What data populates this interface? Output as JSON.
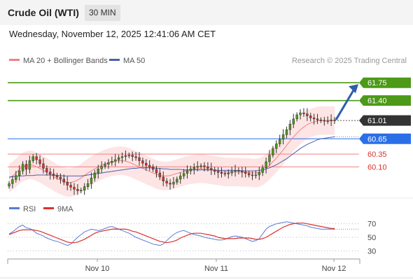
{
  "header": {
    "title": "Crude Oil (WTI)",
    "interval": "30 MIN",
    "datetime": "Wednesday, November 12, 2025 12:41:06 AM CET"
  },
  "legend": {
    "ma20_label": "MA 20 + Bollinger Bands",
    "ma50_label": "MA 50",
    "credit": "Research © 2025 Trading Central"
  },
  "colors": {
    "resistance": "#4c9a17",
    "support": "#f08080",
    "pivot": "#2a6fe8",
    "last": "#333333",
    "ma20": "#f08080",
    "ma50": "#4b5fae",
    "band": "#fde1e1",
    "candle_up": "#4c9a17",
    "candle_down": "#d9322a",
    "rsi": "#5b7bd5",
    "rsi_ma": "#d9322a",
    "arrow": "#2e5faa"
  },
  "chart_data": [
    {
      "type": "candlestick",
      "ylim": [
        59.5,
        62.0
      ],
      "x_ticks": [
        "Nov 10",
        "Nov 11",
        "Nov 12"
      ],
      "levels": [
        {
          "value": 61.75,
          "label": "61.75",
          "kind": "resistance"
        },
        {
          "value": 61.4,
          "label": "61.40",
          "kind": "resistance"
        },
        {
          "value": 61.01,
          "label": "61.01",
          "kind": "last"
        },
        {
          "value": 60.65,
          "label": "60.65",
          "kind": "pivot"
        },
        {
          "value": 60.35,
          "label": "60.35",
          "kind": "support"
        },
        {
          "value": 60.1,
          "label": "60.10",
          "kind": "support"
        }
      ],
      "close": [
        59.77,
        59.85,
        59.93,
        60.02,
        60.15,
        60.05,
        60.22,
        60.3,
        60.24,
        60.16,
        60.07,
        60.0,
        59.96,
        59.93,
        59.9,
        59.86,
        59.8,
        59.74,
        59.7,
        59.66,
        59.63,
        59.64,
        59.71,
        59.77,
        59.88,
        59.98,
        60.06,
        60.11,
        60.15,
        60.18,
        60.21,
        60.24,
        60.28,
        60.3,
        60.32,
        60.33,
        60.3,
        60.28,
        60.22,
        60.17,
        60.13,
        60.1,
        60.05,
        59.98,
        59.9,
        59.82,
        59.78,
        59.76,
        59.8,
        59.86,
        59.92,
        59.97,
        60.02,
        60.06,
        60.09,
        60.11,
        60.12,
        60.1,
        60.07,
        60.04,
        60.01,
        59.99,
        59.97,
        59.96,
        59.98,
        60.01,
        60.03,
        60.02,
        60.0,
        59.97,
        59.94,
        59.93,
        59.94,
        59.99,
        60.08,
        60.2,
        60.33,
        60.46,
        60.55,
        60.64,
        60.73,
        60.83,
        60.94,
        61.04,
        61.12,
        61.16,
        61.14,
        61.1,
        61.06,
        61.04,
        61.02,
        61.01,
        61.0,
        61.0,
        61.02,
        61.01
      ],
      "ma20": [
        59.88,
        59.92,
        59.98,
        60.05,
        60.1,
        60.12,
        60.14,
        60.13,
        60.1,
        60.07,
        60.03,
        59.99,
        59.95,
        59.91,
        59.87,
        59.84,
        59.81,
        59.79,
        59.79,
        59.81,
        59.84,
        59.88,
        59.93,
        59.98,
        60.02,
        60.06,
        60.1,
        60.13,
        60.16,
        60.18,
        60.2,
        60.21,
        60.22,
        60.22,
        60.21,
        60.19,
        60.16,
        60.13,
        60.1,
        60.07,
        60.04,
        60.01,
        59.98,
        59.95,
        59.93,
        59.92,
        59.92,
        59.93,
        59.95,
        59.97,
        59.99,
        60.01,
        60.03,
        60.04,
        60.05,
        60.06,
        60.06,
        60.06,
        60.05,
        60.04,
        60.03,
        60.02,
        60.01,
        60.0,
        60.0,
        60.0,
        60.0,
        60.0,
        59.99,
        59.99,
        59.99,
        59.98,
        59.98,
        59.99,
        60.02,
        60.07,
        60.13,
        60.2,
        60.27,
        60.35,
        60.43,
        60.52,
        60.61,
        60.69,
        60.76,
        60.83,
        60.88,
        60.93,
        60.96,
        60.98,
        61.0,
        61.01,
        61.01,
        61.01,
        61.01,
        61.01
      ],
      "ma50": [
        59.9,
        59.91,
        59.91,
        59.92,
        59.92,
        59.93,
        59.93,
        59.93,
        59.94,
        59.94,
        59.94,
        59.94,
        59.94,
        59.94,
        59.93,
        59.93,
        59.92,
        59.92,
        59.92,
        59.92,
        59.92,
        59.92,
        59.93,
        59.94,
        59.95,
        59.96,
        59.97,
        59.98,
        59.99,
        60.0,
        60.01,
        60.02,
        60.03,
        60.04,
        60.05,
        60.06,
        60.07,
        60.07,
        60.08,
        60.08,
        60.08,
        60.08,
        60.08,
        60.07,
        60.07,
        60.06,
        60.06,
        60.05,
        60.05,
        60.05,
        60.05,
        60.04,
        60.04,
        60.04,
        60.04,
        60.04,
        60.04,
        60.04,
        60.04,
        60.04,
        60.04,
        60.03,
        60.03,
        60.03,
        60.03,
        60.03,
        60.03,
        60.03,
        60.02,
        60.02,
        60.02,
        60.02,
        60.02,
        60.03,
        60.04,
        60.06,
        60.08,
        60.11,
        60.14,
        60.18,
        60.22,
        60.26,
        60.31,
        60.36,
        60.41,
        60.46,
        60.5,
        60.54,
        60.57,
        60.6,
        60.63,
        60.65,
        60.66,
        60.67,
        60.68,
        60.69
      ],
      "band_width": 0.28
    },
    {
      "type": "line",
      "name": "RSI",
      "ylim": [
        20,
        80
      ],
      "y_ticks": [
        70,
        50,
        30
      ],
      "legend": [
        "RSI",
        "9MA"
      ],
      "rsi": [
        55,
        58,
        62,
        66,
        68,
        64,
        63,
        60,
        56,
        54,
        52,
        49,
        47,
        45,
        44,
        42,
        40,
        38,
        40,
        45,
        50,
        54,
        58,
        60,
        62,
        61,
        60,
        61,
        63,
        65,
        66,
        64,
        62,
        60,
        58,
        56,
        53,
        50,
        48,
        46,
        44,
        42,
        40,
        39,
        38,
        40,
        45,
        50,
        54,
        57,
        59,
        60,
        58,
        56,
        54,
        53,
        52,
        50,
        49,
        48,
        47,
        46,
        46,
        47,
        49,
        51,
        52,
        51,
        50,
        48,
        46,
        44,
        45,
        48,
        55,
        62,
        66,
        68,
        70,
        71,
        72,
        73,
        72,
        71,
        70,
        69,
        68,
        67,
        65,
        64,
        63,
        62,
        62,
        62,
        62,
        62
      ],
      "rsi_ma": [
        54,
        56,
        58,
        60,
        61,
        61,
        61,
        61,
        60,
        59,
        57,
        55,
        53,
        51,
        49,
        47,
        45,
        43,
        42,
        42,
        43,
        45,
        47,
        50,
        53,
        56,
        58,
        59,
        60,
        61,
        62,
        62,
        62,
        62,
        62,
        61,
        59,
        58,
        56,
        54,
        52,
        50,
        48,
        46,
        44,
        43,
        42,
        43,
        44,
        46,
        49,
        51,
        53,
        55,
        56,
        56,
        56,
        55,
        54,
        53,
        52,
        50,
        49,
        48,
        48,
        48,
        48,
        49,
        49,
        49,
        49,
        48,
        47,
        47,
        48,
        50,
        53,
        56,
        59,
        62,
        65,
        67,
        69,
        70,
        71,
        71,
        71,
        70,
        69,
        68,
        67,
        66,
        65,
        64,
        63,
        63
      ]
    }
  ]
}
